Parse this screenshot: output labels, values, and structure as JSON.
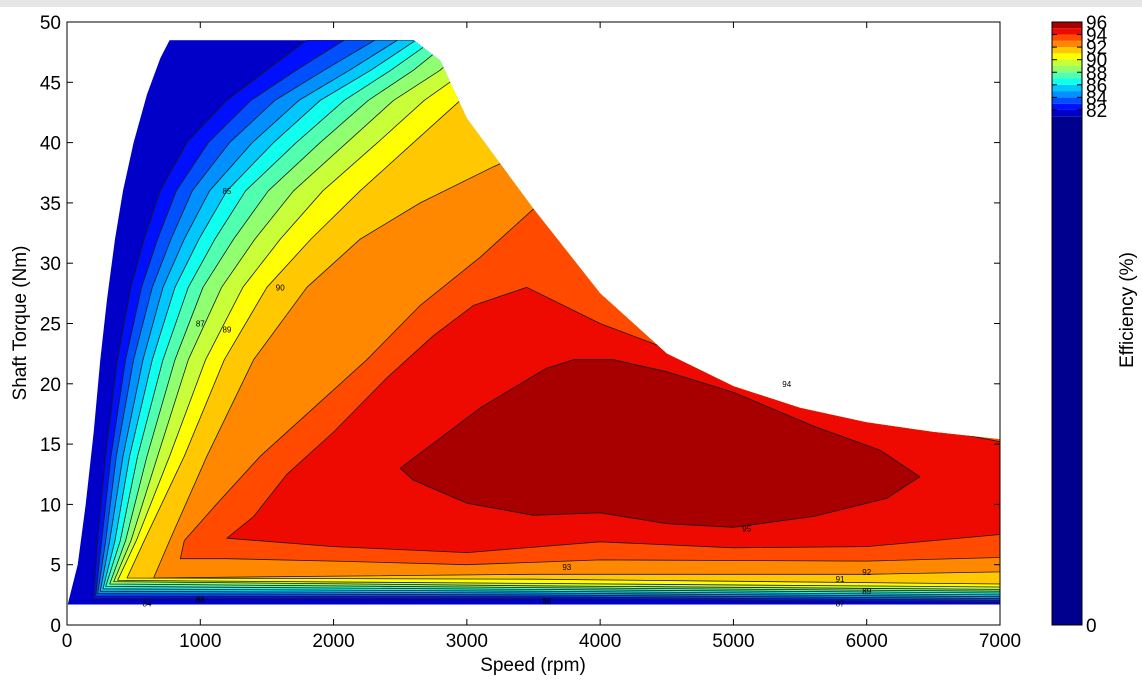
{
  "chart_data": {
    "type": "contour",
    "title": "",
    "xlabel": "Speed  (rpm)",
    "ylabel": "Shaft Torque  (Nm)",
    "colorbar_label": "Efficiency (%)",
    "xlim": [
      0,
      7000
    ],
    "ylim": [
      0,
      50
    ],
    "xticks": [
      0,
      1000,
      2000,
      3000,
      4000,
      5000,
      6000,
      7000
    ],
    "yticks": [
      0,
      5,
      10,
      15,
      20,
      25,
      30,
      35,
      40,
      45,
      50
    ],
    "colorbar_range": [
      0,
      96
    ],
    "colorbar_ticks": [
      0,
      82,
      84,
      86,
      88,
      90,
      92,
      94,
      96
    ],
    "colorbar_steps": [
      {
        "lo": 0,
        "hi": 81,
        "color": "#00008f"
      },
      {
        "lo": 81,
        "hi": 82,
        "color": "#0000c8"
      },
      {
        "lo": 82,
        "hi": 83,
        "color": "#0010ff"
      },
      {
        "lo": 83,
        "hi": 84,
        "color": "#0050ff"
      },
      {
        "lo": 84,
        "hi": 85,
        "color": "#0090ff"
      },
      {
        "lo": 85,
        "hi": 86,
        "color": "#00c8ff"
      },
      {
        "lo": 86,
        "hi": 87,
        "color": "#10ffee"
      },
      {
        "lo": 87,
        "hi": 88,
        "color": "#50ffb0"
      },
      {
        "lo": 88,
        "hi": 89,
        "color": "#90ff70"
      },
      {
        "lo": 89,
        "hi": 90,
        "color": "#c8ff38"
      },
      {
        "lo": 90,
        "hi": 91,
        "color": "#ffff00"
      },
      {
        "lo": 91,
        "hi": 92,
        "color": "#ffc800"
      },
      {
        "lo": 92,
        "hi": 93,
        "color": "#ff8800"
      },
      {
        "lo": 93,
        "hi": 94,
        "color": "#ff4a00"
      },
      {
        "lo": 94,
        "hi": 95,
        "color": "#ee0a00"
      },
      {
        "lo": 95,
        "hi": 96,
        "color": "#a80000"
      }
    ],
    "torque_envelope": [
      [
        0,
        48.8
      ],
      [
        200,
        48.5
      ],
      [
        2600,
        48.5
      ],
      [
        2800,
        46.8
      ],
      [
        3000,
        42
      ],
      [
        3500,
        34.5
      ],
      [
        4000,
        27.5
      ],
      [
        4500,
        22.5
      ],
      [
        5000,
        19.8
      ],
      [
        5500,
        18
      ],
      [
        6000,
        16.8
      ],
      [
        6500,
        16
      ],
      [
        7000,
        15.4
      ]
    ],
    "bands": [
      {
        "level": 81,
        "points": [
          [
            5,
            1.7
          ],
          [
            80,
            5
          ],
          [
            140,
            10
          ],
          [
            200,
            16
          ],
          [
            250,
            22
          ],
          [
            300,
            27
          ],
          [
            360,
            32
          ],
          [
            420,
            36
          ],
          [
            500,
            40
          ],
          [
            600,
            44
          ],
          [
            700,
            47
          ],
          [
            770,
            48.5
          ],
          [
            7000,
            48.5
          ],
          [
            7000,
            1.7
          ]
        ]
      },
      {
        "level": 82,
        "points": [
          [
            200,
            2.2
          ],
          [
            230,
            7
          ],
          [
            290,
            14
          ],
          [
            380,
            22
          ],
          [
            480,
            28
          ],
          [
            580,
            32
          ],
          [
            700,
            36
          ],
          [
            900,
            40
          ],
          [
            1200,
            43.5
          ],
          [
            1500,
            46
          ],
          [
            1800,
            48.5
          ],
          [
            7000,
            48.5
          ],
          [
            7000,
            1.9
          ],
          [
            3500,
            2.2
          ]
        ]
      },
      {
        "level": 83,
        "points": [
          [
            215,
            2.4
          ],
          [
            260,
            7
          ],
          [
            330,
            14
          ],
          [
            440,
            22
          ],
          [
            560,
            28
          ],
          [
            680,
            32
          ],
          [
            820,
            36
          ],
          [
            1060,
            40
          ],
          [
            1380,
            43.5
          ],
          [
            1720,
            46
          ],
          [
            2080,
            48.5
          ],
          [
            7000,
            48.5
          ],
          [
            7000,
            2.05
          ],
          [
            3500,
            2.35
          ]
        ]
      },
      {
        "level": 84,
        "points": [
          [
            230,
            2.6
          ],
          [
            290,
            7
          ],
          [
            370,
            14
          ],
          [
            500,
            22
          ],
          [
            640,
            28
          ],
          [
            780,
            32
          ],
          [
            940,
            36
          ],
          [
            1220,
            40
          ],
          [
            1560,
            43.5
          ],
          [
            1930,
            46
          ],
          [
            2310,
            48.5
          ],
          [
            7000,
            48.5
          ],
          [
            7000,
            2.2
          ],
          [
            3500,
            2.5
          ]
        ]
      },
      {
        "level": 85,
        "points": [
          [
            250,
            2.8
          ],
          [
            320,
            7
          ],
          [
            420,
            14
          ],
          [
            570,
            22
          ],
          [
            720,
            28
          ],
          [
            880,
            32
          ],
          [
            1070,
            36
          ],
          [
            1390,
            40
          ],
          [
            1740,
            43.5
          ],
          [
            2120,
            46
          ],
          [
            2480,
            48.5
          ],
          [
            7000,
            48.5
          ],
          [
            7000,
            2.35
          ],
          [
            3500,
            2.65
          ]
        ]
      },
      {
        "level": 86,
        "points": [
          [
            270,
            3.0
          ],
          [
            360,
            7
          ],
          [
            470,
            14
          ],
          [
            640,
            22
          ],
          [
            810,
            28
          ],
          [
            990,
            32
          ],
          [
            1200,
            36
          ],
          [
            1550,
            40
          ],
          [
            1900,
            43.5
          ],
          [
            2280,
            46
          ],
          [
            2620,
            48.5
          ],
          [
            7000,
            48.5
          ],
          [
            7000,
            2.5
          ],
          [
            3500,
            2.8
          ]
        ]
      },
      {
        "level": 87,
        "points": [
          [
            290,
            3.2
          ],
          [
            400,
            7
          ],
          [
            530,
            14
          ],
          [
            720,
            22
          ],
          [
            910,
            28
          ],
          [
            1110,
            32
          ],
          [
            1340,
            36
          ],
          [
            1720,
            40
          ],
          [
            2080,
            43.5
          ],
          [
            2430,
            46
          ],
          [
            2750,
            48.5
          ],
          [
            7000,
            48.5
          ],
          [
            7000,
            2.65
          ],
          [
            3500,
            2.95
          ]
        ]
      },
      {
        "level": 88,
        "points": [
          [
            320,
            3.4
          ],
          [
            440,
            7
          ],
          [
            600,
            14
          ],
          [
            810,
            22
          ],
          [
            1020,
            28
          ],
          [
            1250,
            32
          ],
          [
            1510,
            36
          ],
          [
            1900,
            40
          ],
          [
            2260,
            43.5
          ],
          [
            2600,
            46
          ],
          [
            2880,
            48.5
          ],
          [
            7000,
            48.5
          ],
          [
            7000,
            2.8
          ],
          [
            3500,
            3.1
          ]
        ]
      },
      {
        "level": 89,
        "points": [
          [
            350,
            3.6
          ],
          [
            480,
            7
          ],
          [
            680,
            14
          ],
          [
            910,
            22
          ],
          [
            1160,
            28
          ],
          [
            1410,
            32
          ],
          [
            1700,
            36
          ],
          [
            2100,
            40
          ],
          [
            2450,
            43.5
          ],
          [
            2800,
            46
          ],
          [
            3050,
            48.5
          ],
          [
            7000,
            48.5
          ],
          [
            7000,
            2.95
          ],
          [
            3500,
            3.25
          ]
        ]
      },
      {
        "level": 90,
        "points": [
          [
            380,
            3.7
          ],
          [
            520,
            7
          ],
          [
            770,
            14
          ],
          [
            1040,
            22
          ],
          [
            1320,
            28
          ],
          [
            1600,
            32
          ],
          [
            1920,
            36
          ],
          [
            2330,
            40
          ],
          [
            2680,
            43.5
          ],
          [
            3000,
            46
          ],
          [
            3250,
            48.5
          ],
          [
            7000,
            48.5
          ],
          [
            7000,
            3.15
          ],
          [
            3500,
            3.45
          ]
        ]
      },
      {
        "level": 91,
        "points": [
          [
            450,
            3.9
          ],
          [
            580,
            7
          ],
          [
            880,
            14
          ],
          [
            1180,
            22
          ],
          [
            1500,
            28
          ],
          [
            1830,
            32
          ],
          [
            2200,
            36
          ],
          [
            2600,
            40
          ],
          [
            2950,
            43.5
          ],
          [
            3300,
            46
          ],
          [
            3600,
            48.5
          ],
          [
            7000,
            48.5
          ],
          [
            7000,
            3.4
          ],
          [
            3500,
            3.8
          ]
        ]
      },
      {
        "level": 92,
        "points": [
          [
            650,
            3.9
          ],
          [
            770,
            7
          ],
          [
            1050,
            14
          ],
          [
            1400,
            22
          ],
          [
            1800,
            28
          ],
          [
            2200,
            32
          ],
          [
            2650,
            35
          ],
          [
            3200,
            38
          ],
          [
            3800,
            41
          ],
          [
            4500,
            44
          ],
          [
            5500,
            47
          ],
          [
            7000,
            48.5
          ],
          [
            7000,
            4.4
          ],
          [
            6000,
            4.2
          ],
          [
            3500,
            4.2
          ],
          [
            1500,
            4.0
          ]
        ]
      },
      {
        "level": 93,
        "points": [
          [
            850,
            5.5
          ],
          [
            880,
            7
          ],
          [
            1120,
            10
          ],
          [
            1450,
            14
          ],
          [
            1850,
            18
          ],
          [
            2250,
            22
          ],
          [
            2650,
            26.5
          ],
          [
            3100,
            30.5
          ],
          [
            3500,
            34.5
          ],
          [
            4000,
            38
          ],
          [
            5000,
            43
          ],
          [
            6000,
            46
          ],
          [
            7000,
            48.5
          ],
          [
            7000,
            5.6
          ],
          [
            6000,
            5.3
          ],
          [
            4000,
            5.4
          ],
          [
            3000,
            5.0
          ],
          [
            2000,
            5.3
          ],
          [
            1200,
            5.5
          ]
        ]
      },
      {
        "level": 94,
        "points": [
          [
            1200,
            7.2
          ],
          [
            1400,
            9
          ],
          [
            1650,
            12.5
          ],
          [
            2000,
            16
          ],
          [
            2400,
            20.5
          ],
          [
            2750,
            24
          ],
          [
            3050,
            26.5
          ],
          [
            3450,
            28
          ],
          [
            4000,
            25
          ],
          [
            4600,
            22.5
          ],
          [
            5200,
            20
          ],
          [
            5800,
            18
          ],
          [
            6400,
            16.5
          ],
          [
            7000,
            15.2
          ],
          [
            7000,
            7.5
          ],
          [
            6500,
            7
          ],
          [
            6000,
            6.5
          ],
          [
            5000,
            6.4
          ],
          [
            4000,
            6.9
          ],
          [
            3000,
            6.0
          ],
          [
            2000,
            6.5
          ]
        ]
      },
      {
        "level": 95,
        "points": [
          [
            2500,
            13
          ],
          [
            2800,
            15.5
          ],
          [
            3100,
            18
          ],
          [
            3400,
            20
          ],
          [
            3600,
            21.3
          ],
          [
            3800,
            22
          ],
          [
            4100,
            22
          ],
          [
            4500,
            21
          ],
          [
            5000,
            19.3
          ],
          [
            5600,
            16.5
          ],
          [
            6100,
            14.5
          ],
          [
            6400,
            12.3
          ],
          [
            6150,
            10.5
          ],
          [
            5600,
            9.0
          ],
          [
            5000,
            8.1
          ],
          [
            4500,
            8.4
          ],
          [
            4000,
            9.3
          ],
          [
            3500,
            9.1
          ],
          [
            3000,
            10.1
          ],
          [
            2600,
            12
          ]
        ]
      }
    ],
    "contour_labels": [
      {
        "x": 1200,
        "y": 36,
        "text": "85"
      },
      {
        "x": 1600,
        "y": 28,
        "text": "90"
      },
      {
        "x": 1000,
        "y": 25,
        "text": "87"
      },
      {
        "x": 1200,
        "y": 24.5,
        "text": "89"
      },
      {
        "x": 5400,
        "y": 20,
        "text": "94"
      },
      {
        "x": 5100,
        "y": 8,
        "text": "95"
      },
      {
        "x": 3750,
        "y": 4.8,
        "text": "93"
      },
      {
        "x": 6000,
        "y": 4.4,
        "text": "92"
      },
      {
        "x": 5800,
        "y": 3.8,
        "text": "91"
      },
      {
        "x": 6000,
        "y": 2.8,
        "text": "89"
      },
      {
        "x": 600,
        "y": 1.8,
        "text": "84"
      },
      {
        "x": 1000,
        "y": 2.1,
        "text": "88"
      },
      {
        "x": 3600,
        "y": 2.0,
        "text": "86"
      },
      {
        "x": 5800,
        "y": 1.8,
        "text": "87"
      }
    ],
    "grid": false,
    "legend": "colorbar-right"
  }
}
